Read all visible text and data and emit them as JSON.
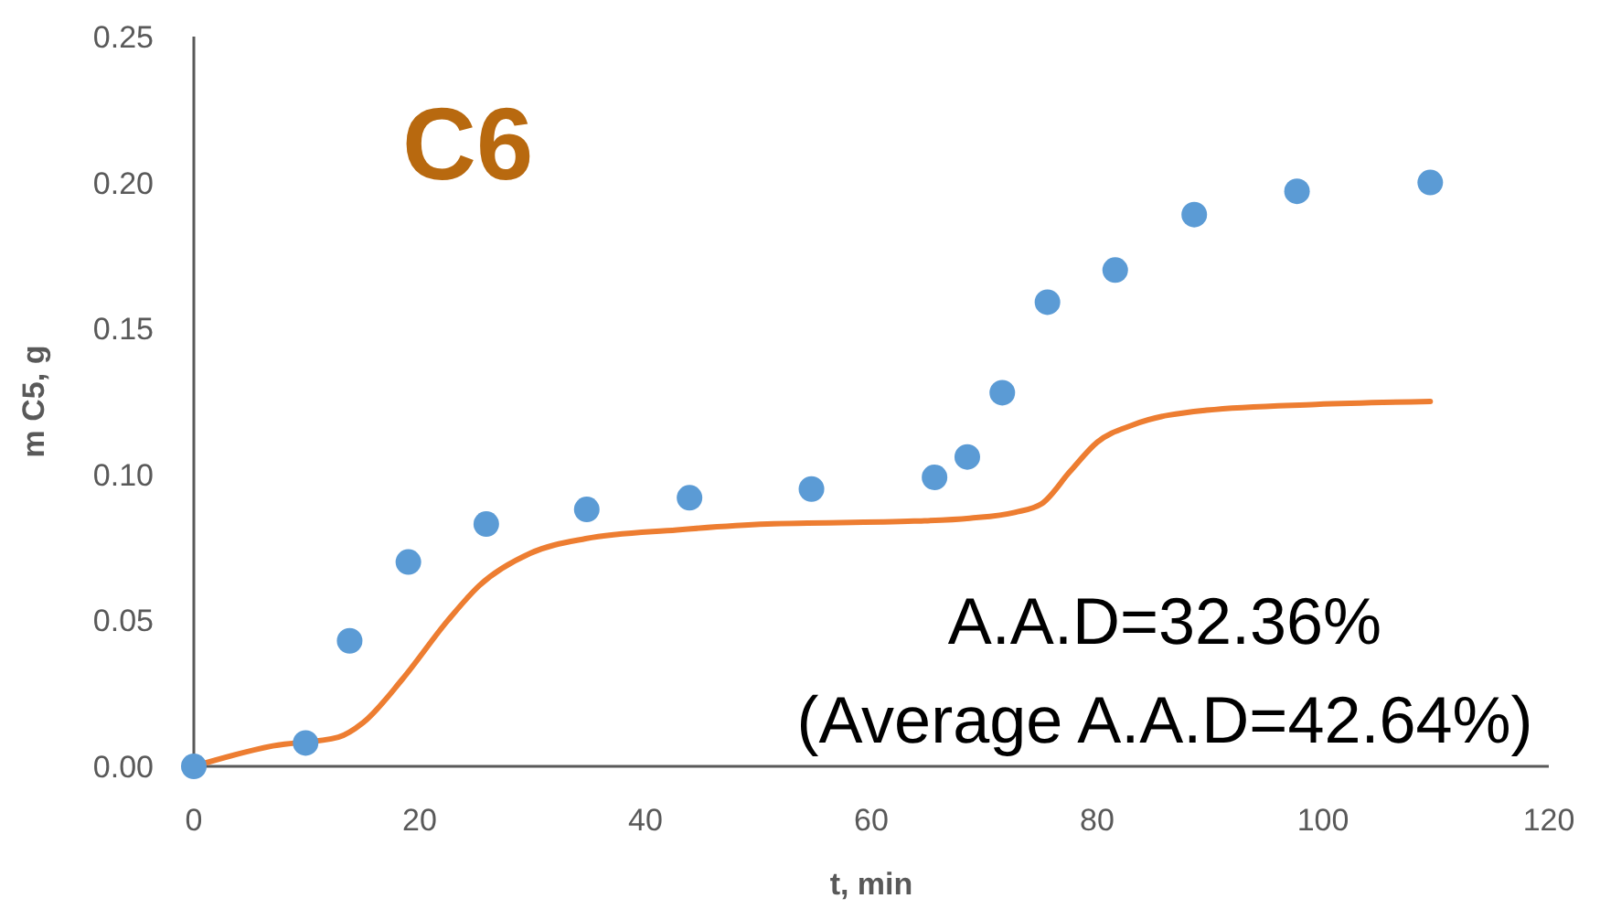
{
  "chart_data": {
    "type": "scatter",
    "xlabel": "t, min",
    "ylabel": "m C5, g",
    "xlim": [
      0,
      120
    ],
    "xticks": [
      0,
      20,
      40,
      60,
      80,
      100,
      120
    ],
    "ylim": [
      0,
      0.25
    ],
    "yticks": [
      {
        "value": 0,
        "label": "0.00"
      },
      {
        "value": 0.05,
        "label": "0.05"
      },
      {
        "value": 0.1,
        "label": "0.10"
      },
      {
        "value": 0.15,
        "label": "0.15"
      },
      {
        "value": 0.2,
        "label": "0.20"
      },
      {
        "value": 0.25,
        "label": "0.25"
      }
    ],
    "grid": false,
    "annotations": [
      "C6",
      "A.A.D=32.36%",
      "(Average A.A.D=42.64%)"
    ],
    "series": [
      {
        "type": "line",
        "color": "#ed7d31",
        "marker": "none",
        "line_style": "solid",
        "x": [
          0,
          7,
          12.8,
          15,
          18.5,
          22.5,
          25.3,
          29.8,
          34.7,
          42.8,
          50.8,
          63.8,
          68.7,
          72.7,
          75.1,
          77.6,
          80,
          83.2,
          89.7,
          99.4,
          109.5
        ],
        "values": [
          0,
          0.007,
          0.01,
          0.015,
          0.03,
          0.05,
          0.062,
          0.073,
          0.078,
          0.081,
          0.083,
          0.084,
          0.085,
          0.087,
          0.09,
          0.101,
          0.111,
          0.117,
          0.122,
          0.124,
          0.125
        ]
      },
      {
        "type": "scatter",
        "color": "#5b9bd5",
        "marker": "circle",
        "x": [
          0,
          9.9,
          13.8,
          19,
          25.9,
          34.8,
          43.9,
          54.7,
          65.6,
          68.5,
          71.6,
          75.6,
          81.6,
          88.6,
          97.7,
          109.5
        ],
        "values": [
          0,
          0.008,
          0.043,
          0.07,
          0.083,
          0.088,
          0.092,
          0.095,
          0.099,
          0.106,
          0.128,
          0.159,
          0.17,
          0.189,
          0.197,
          0.2
        ]
      }
    ]
  }
}
